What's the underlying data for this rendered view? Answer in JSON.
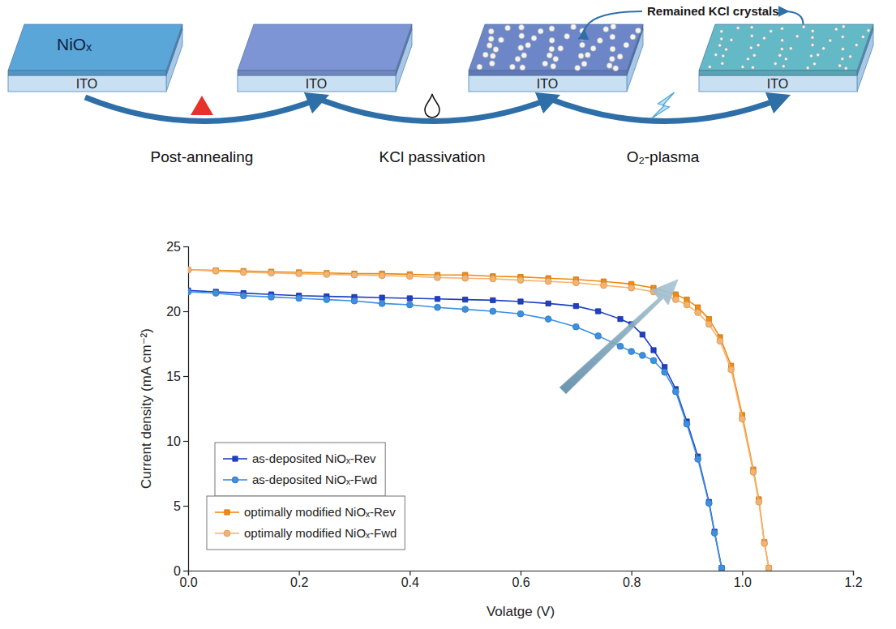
{
  "diagram": {
    "layers": {
      "top": "NiOₓ",
      "bottom": "ITO"
    },
    "steps": [
      "Post-annealing",
      "KCl passivation",
      "O₂-plasma"
    ],
    "annotation": "Remained KCl crystals"
  },
  "chart_data": {
    "type": "line",
    "x_label": "Volatge (V)",
    "y_label": "Current density (mA cm⁻²)",
    "xlim": [
      0,
      1.2
    ],
    "xticks": [
      {
        "value": 0,
        "label": "0.0"
      },
      0.2,
      0.4,
      0.6,
      0.8,
      {
        "value": 1,
        "label": "1.0"
      },
      1.2
    ],
    "ylim": [
      0,
      25
    ],
    "yticks": [
      0,
      5,
      10,
      15,
      20,
      25
    ],
    "grid": false,
    "legend": "lower left",
    "series": [
      {
        "name": "as-deposited NiOₓ-Rev",
        "color": "#1f3fc4",
        "marker": "square",
        "x": [
          0,
          0.05,
          0.1,
          0.15,
          0.2,
          0.25,
          0.3,
          0.35,
          0.4,
          0.45,
          0.5,
          0.55,
          0.6,
          0.65,
          0.7,
          0.74,
          0.78,
          0.8,
          0.82,
          0.84,
          0.86,
          0.88,
          0.9,
          0.92,
          0.94,
          0.95,
          0.963
        ],
        "values": [
          21.6,
          21.5,
          21.4,
          21.3,
          21.2,
          21.15,
          21.1,
          21.05,
          21.0,
          20.95,
          20.9,
          20.85,
          20.75,
          20.6,
          20.4,
          20.0,
          19.4,
          19.0,
          18.2,
          17.0,
          15.7,
          14.0,
          11.5,
          8.8,
          5.3,
          3.0,
          0.2
        ]
      },
      {
        "name": "as-deposited NiOₓ-Fwd",
        "color": "#3d8fe0",
        "marker": "circle",
        "x": [
          0,
          0.05,
          0.1,
          0.15,
          0.2,
          0.25,
          0.3,
          0.35,
          0.4,
          0.45,
          0.5,
          0.55,
          0.6,
          0.65,
          0.7,
          0.74,
          0.78,
          0.8,
          0.82,
          0.84,
          0.86,
          0.88,
          0.9,
          0.92,
          0.94,
          0.95,
          0.963
        ],
        "values": [
          21.5,
          21.4,
          21.2,
          21.1,
          21.0,
          20.9,
          20.8,
          20.6,
          20.5,
          20.3,
          20.15,
          20.0,
          19.8,
          19.4,
          18.8,
          18.1,
          17.3,
          16.9,
          16.6,
          16.2,
          15.3,
          13.8,
          11.3,
          8.6,
          5.2,
          2.9,
          0.2
        ]
      },
      {
        "name": "optimally modified NiOₓ-Rev",
        "color": "#f08a10",
        "marker": "square",
        "x": [
          0,
          0.05,
          0.1,
          0.15,
          0.2,
          0.25,
          0.3,
          0.35,
          0.4,
          0.45,
          0.5,
          0.55,
          0.6,
          0.65,
          0.7,
          0.75,
          0.8,
          0.84,
          0.88,
          0.9,
          0.92,
          0.94,
          0.96,
          0.98,
          1.0,
          1.02,
          1.03,
          1.04,
          1.048
        ],
        "values": [
          23.2,
          23.15,
          23.1,
          23.05,
          23.0,
          22.95,
          22.9,
          22.9,
          22.85,
          22.8,
          22.8,
          22.7,
          22.65,
          22.55,
          22.45,
          22.3,
          22.1,
          21.8,
          21.3,
          20.9,
          20.3,
          19.4,
          18.0,
          15.8,
          12.0,
          7.8,
          5.5,
          2.2,
          0.2
        ]
      },
      {
        "name": "optimally modified NiOₓ-Fwd",
        "color": "#f6b36e",
        "marker": "circle",
        "x": [
          0,
          0.05,
          0.1,
          0.15,
          0.2,
          0.25,
          0.3,
          0.35,
          0.4,
          0.45,
          0.5,
          0.55,
          0.6,
          0.65,
          0.7,
          0.75,
          0.8,
          0.84,
          0.88,
          0.9,
          0.92,
          0.94,
          0.96,
          0.98,
          1.0,
          1.02,
          1.03,
          1.04,
          1.048
        ],
        "values": [
          23.2,
          23.1,
          23.0,
          22.95,
          22.9,
          22.85,
          22.8,
          22.75,
          22.7,
          22.6,
          22.55,
          22.5,
          22.4,
          22.3,
          22.2,
          22.0,
          21.8,
          21.5,
          20.9,
          20.5,
          19.9,
          19.0,
          17.7,
          15.5,
          11.7,
          7.6,
          5.3,
          2.1,
          0.2
        ]
      }
    ]
  }
}
